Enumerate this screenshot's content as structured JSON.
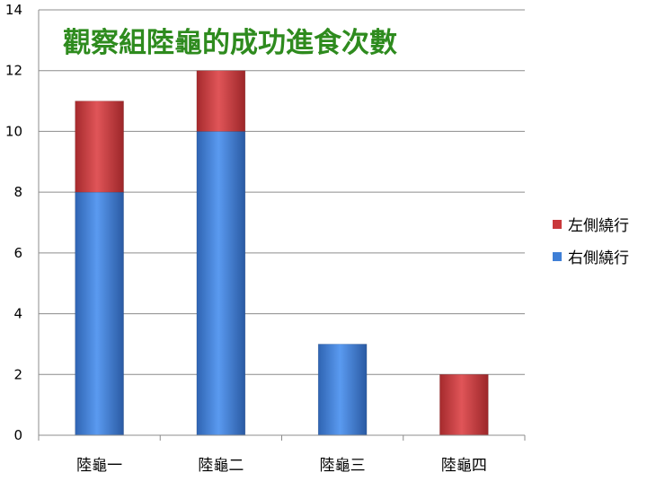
{
  "chart_data": {
    "type": "bar",
    "stacked": true,
    "title": "觀察組陸龜的成功進食次數",
    "categories": [
      "陸龜一",
      "陸龜二",
      "陸龜三",
      "陸龜四"
    ],
    "series": [
      {
        "name": "右側繞行",
        "values": [
          8,
          10,
          3,
          0
        ],
        "color": "#3f7fd6"
      },
      {
        "name": "左側繞行",
        "values": [
          3,
          2,
          0,
          2
        ],
        "color": "#c9383b"
      }
    ],
    "ylim": [
      0,
      14
    ],
    "yticks": [
      "0",
      "2",
      "4",
      "6",
      "8",
      "10",
      "12",
      "14"
    ],
    "grid": true,
    "legend_position": "right",
    "legend_order": [
      "左側繞行",
      "右側繞行"
    ],
    "title_color": "#2e8b1e"
  }
}
